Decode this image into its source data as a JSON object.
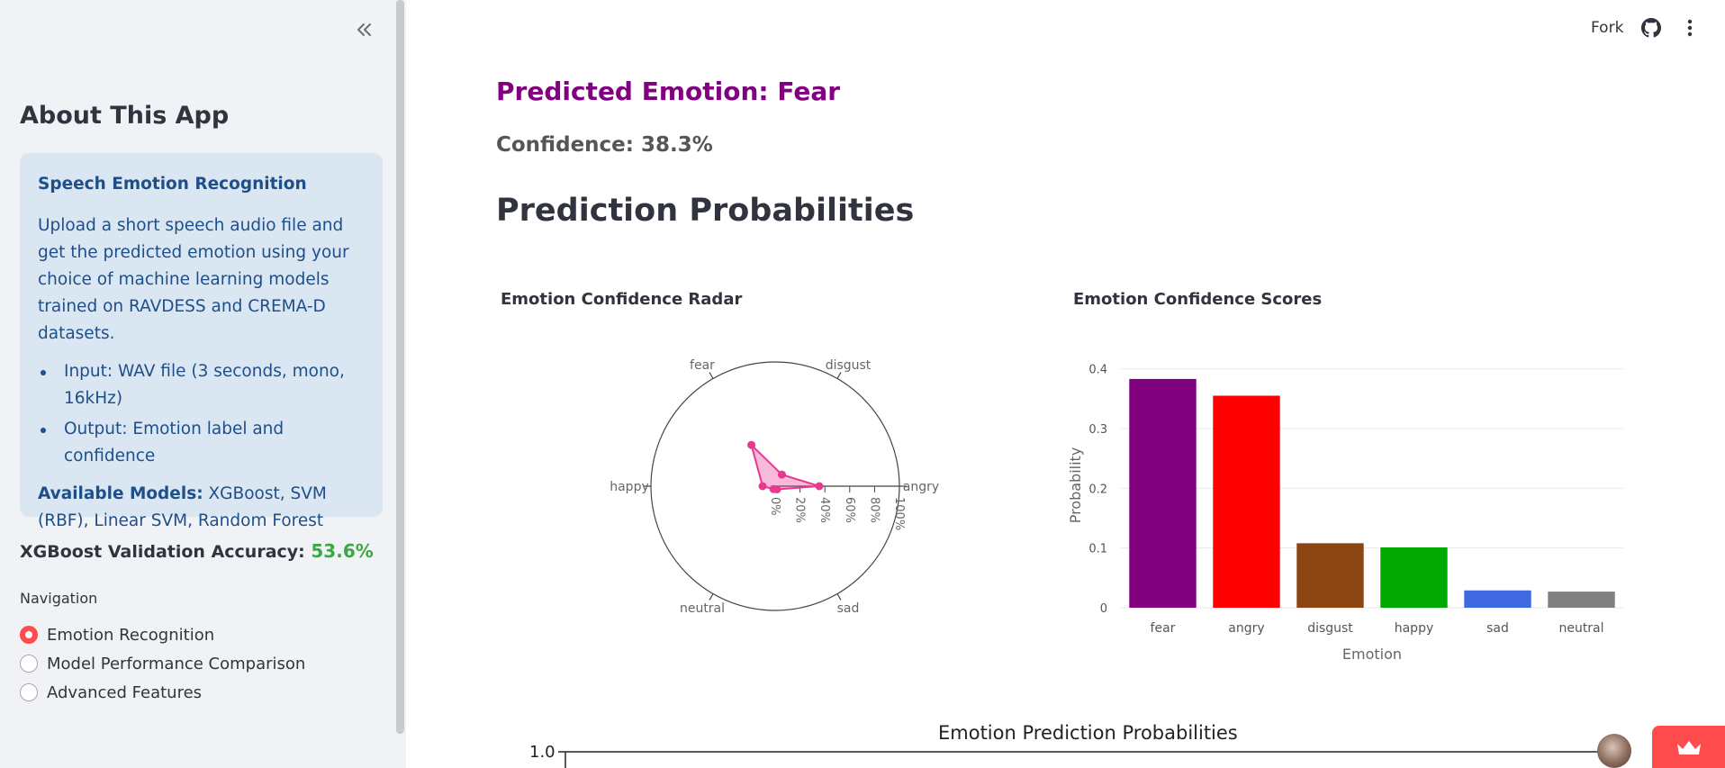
{
  "sidebar": {
    "about_title": "About This App",
    "info_box": {
      "title": "Speech Emotion Recognition",
      "description": "Upload a short speech audio file and get the predicted emotion using your choice of machine learning models trained on RAVDESS and CREMA-D datasets.",
      "bullets": [
        "Input: WAV file (3 seconds, mono, 16kHz)",
        "Output: Emotion label and confidence"
      ],
      "models_label": "Available Models:",
      "models_value": " XGBoost, SVM (RBF), Linear SVM, Random Forest"
    },
    "accuracy_label": "XGBoost Validation Accuracy:",
    "accuracy_value": "53.6%",
    "nav_label": "Navigation",
    "nav_items": [
      {
        "label": "Emotion Recognition",
        "selected": true
      },
      {
        "label": "Model Performance Comparison",
        "selected": false
      },
      {
        "label": "Advanced Features",
        "selected": false
      }
    ]
  },
  "header": {
    "fork_label": "Fork",
    "icons": [
      "github-icon",
      "more-vertical-icon"
    ]
  },
  "main": {
    "predicted_emotion": "Predicted Emotion: Fear",
    "confidence": "Confidence: 38.3%",
    "probabilities_heading": "Prediction Probabilities",
    "radar_title": "Emotion Confidence Radar",
    "bar_title": "Emotion Confidence Scores",
    "bottom_chart_title": "Emotion Prediction Probabilities",
    "bottom_chart_ytick": "1.0"
  },
  "colors": {
    "accent": "#ff4b4b",
    "emotion_title": "#800080",
    "accuracy": "#3aa845",
    "info_bg": "#dbe6f3",
    "info_text": "#1d4f8b",
    "radar_fill": "#e8388f"
  },
  "chart_data": [
    {
      "type": "radar",
      "title": "Emotion Confidence Radar",
      "axes": [
        "angry",
        "disgust",
        "fear",
        "happy",
        "neutral",
        "sad"
      ],
      "values": [
        0.355,
        0.108,
        0.383,
        0.101,
        0.027,
        0.029
      ],
      "radial_ticks": [
        "0%",
        "20%",
        "40%",
        "60%",
        "80%",
        "100%"
      ],
      "radial_range": [
        0,
        1
      ]
    },
    {
      "type": "bar",
      "title": "Emotion Confidence Scores",
      "categories": [
        "fear",
        "angry",
        "disgust",
        "happy",
        "sad",
        "neutral"
      ],
      "values": [
        0.383,
        0.355,
        0.108,
        0.101,
        0.029,
        0.027
      ],
      "colors": [
        "#800080",
        "#ff0000",
        "#8b4513",
        "#00a800",
        "#4169e1",
        "#808080"
      ],
      "xlabel": "Emotion",
      "ylabel": "Probability",
      "yticks": [
        "0",
        "0.1",
        "0.2",
        "0.3",
        "0.4"
      ],
      "ylim": [
        0,
        0.41
      ],
      "grid": true
    }
  ]
}
